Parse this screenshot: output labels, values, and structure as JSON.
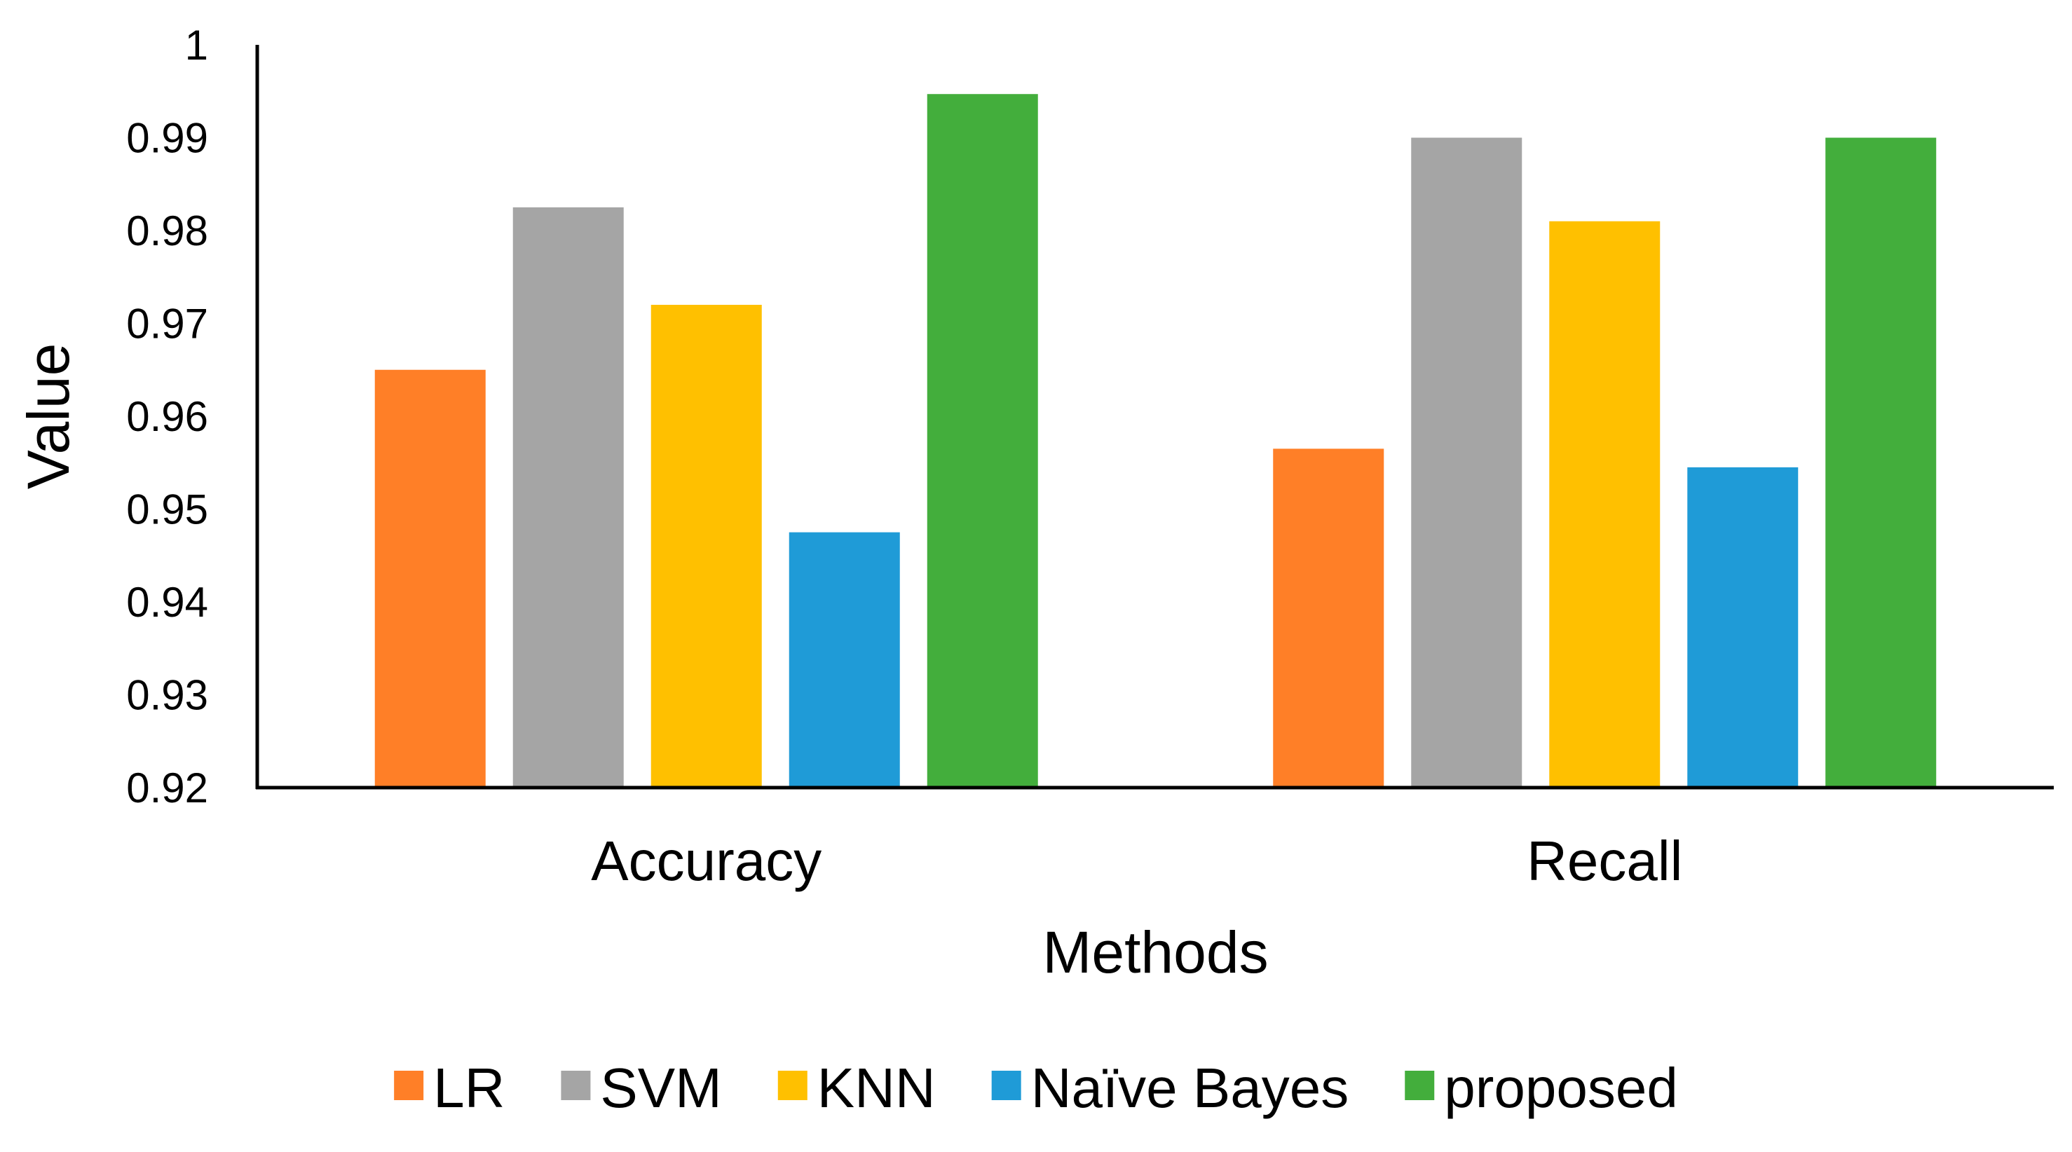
{
  "chart_data": {
    "type": "bar",
    "title": "",
    "xlabel": "Methods",
    "ylabel": "Value",
    "ylim": [
      0.92,
      1.0
    ],
    "yticks": [
      "0.92",
      "0.93",
      "0.94",
      "0.95",
      "0.96",
      "0.97",
      "0.98",
      "0.99",
      "1"
    ],
    "categories": [
      "Accuracy",
      "Recall"
    ],
    "series": [
      {
        "name": "LR",
        "color": "#FF7F27",
        "values": [
          0.965,
          0.9565
        ]
      },
      {
        "name": "SVM",
        "color": "#A5A5A5",
        "values": [
          0.9825,
          0.99
        ]
      },
      {
        "name": "KNN",
        "color": "#FFC000",
        "values": [
          0.972,
          0.981
        ]
      },
      {
        "name": "Naïve Bayes",
        "color": "#1F9BD7",
        "values": [
          0.9475,
          0.9545
        ]
      },
      {
        "name": "proposed",
        "color": "#43AE3C",
        "values": [
          0.9947,
          0.99
        ]
      }
    ],
    "grid": false,
    "legend_position": "bottom"
  }
}
